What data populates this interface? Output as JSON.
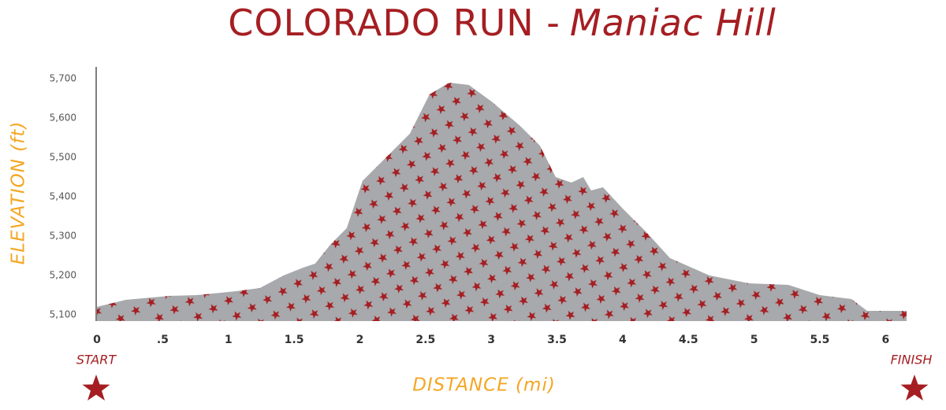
{
  "chart_data": {
    "type": "area",
    "title": "COLORADO RUN -",
    "subtitle": "Maniac Hill",
    "x_label": "DISTANCE (mi)",
    "y_label": "ELEVATION (ft)",
    "start_label": "START",
    "finish_label": "FINISH",
    "color": "#a7a9ac",
    "pattern_color": "#a51e22",
    "x": [
      0,
      0.22,
      0.55,
      0.76,
      1.06,
      1.24,
      1.42,
      1.57,
      1.66,
      1.78,
      1.9,
      2.02,
      2.2,
      2.38,
      2.53,
      2.68,
      2.83,
      3.01,
      3.22,
      3.37,
      3.49,
      3.61,
      3.7,
      3.76,
      3.85,
      4.0,
      4.18,
      4.36,
      4.66,
      4.96,
      5.26,
      5.5,
      5.74,
      5.86,
      6.16
    ],
    "values": [
      5120,
      5138,
      5148,
      5150,
      5160,
      5168,
      5200,
      5220,
      5230,
      5280,
      5320,
      5440,
      5500,
      5560,
      5660,
      5690,
      5684,
      5640,
      5580,
      5530,
      5450,
      5436,
      5450,
      5416,
      5424,
      5370,
      5310,
      5244,
      5200,
      5180,
      5176,
      5150,
      5140,
      5110,
      5110
    ],
    "xlim": [
      0,
      6.16
    ],
    "ylim": [
      5084,
      5730
    ],
    "xticks": [
      0,
      {
        "value": 0.5,
        "label": ".5"
      },
      1,
      1.5,
      2,
      2.5,
      3,
      3.5,
      4,
      4.5,
      5,
      5.5,
      6
    ],
    "yticks": [
      {
        "value": 5100,
        "label": "5,100"
      },
      {
        "value": 5200,
        "label": "5,200"
      },
      {
        "value": 5300,
        "label": "5,300"
      },
      {
        "value": 5400,
        "label": "5,400"
      },
      {
        "value": 5500,
        "label": "5,500"
      },
      {
        "value": 5600,
        "label": "5,600"
      },
      {
        "value": 5700,
        "label": "5,700"
      }
    ],
    "grid": false
  }
}
